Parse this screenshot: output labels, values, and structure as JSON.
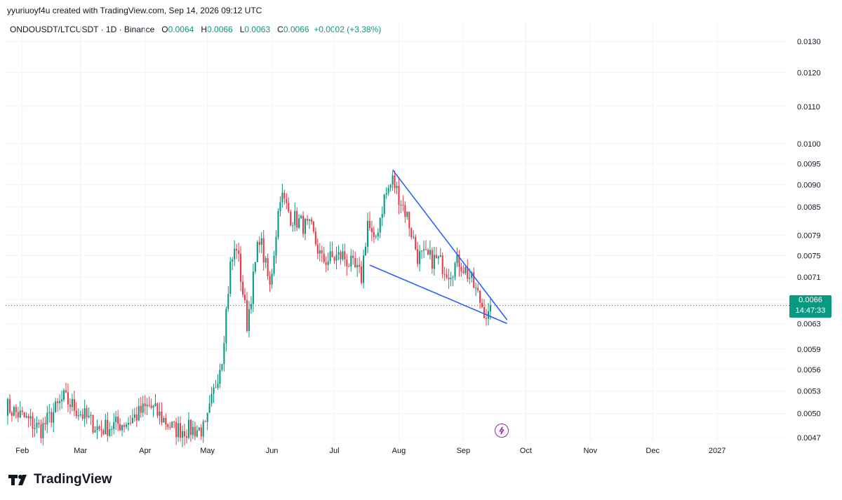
{
  "header": {
    "credit": "yyuriuoyf4u created with TradingView.com, Sep 14, 2026 09:12 UTC",
    "symbol": "ONDOUSDT/LTCUSDT · 1D · Binance",
    "o_label": "O",
    "o_value": "0.0064",
    "h_label": "H",
    "h_value": "0.0066",
    "l_label": "L",
    "l_value": "0.0063",
    "c_label": "C",
    "c_value": "0.0066",
    "change": "+0.0002 (+3.38%)"
  },
  "price_tag": {
    "price": "0.0066",
    "countdown": "14:47:33"
  },
  "brand": {
    "name": "TradingView"
  },
  "colors": {
    "up": "#089981",
    "down": "#f23645",
    "trendline": "#2962ff",
    "last_price_line": "#089981"
  },
  "chart_data": {
    "type": "candlestick",
    "scale": "log",
    "y_ticks": [
      0.013,
      0.012,
      0.011,
      0.01,
      0.0095,
      0.009,
      0.0085,
      0.0079,
      0.0075,
      0.0071,
      0.0067,
      0.0063,
      0.0059,
      0.0056,
      0.0053,
      0.005,
      0.0047
    ],
    "y_tick_labels": [
      "0.0130",
      "0.0120",
      "0.0110",
      "0.0100",
      "0.0095",
      "0.0090",
      "0.0085",
      "0.0079",
      "0.0075",
      "0.0071",
      "0.0067",
      "0.0063",
      "0.0059",
      "0.0056",
      "0.0053",
      "0.0050",
      "0.0047"
    ],
    "ylim": [
      0.00465,
      0.0137
    ],
    "x_ticks": [
      {
        "label": "Feb",
        "date": "2026-02-01"
      },
      {
        "label": "Mar",
        "date": "2026-03-01"
      },
      {
        "label": "Apr",
        "date": "2026-04-01"
      },
      {
        "label": "May",
        "date": "2026-05-01"
      },
      {
        "label": "Jun",
        "date": "2026-06-01"
      },
      {
        "label": "Jul",
        "date": "2026-07-01"
      },
      {
        "label": "Aug",
        "date": "2026-08-01"
      },
      {
        "label": "Sep",
        "date": "2026-09-01"
      },
      {
        "label": "Oct",
        "date": "2026-10-01"
      },
      {
        "label": "Nov",
        "date": "2026-11-01"
      },
      {
        "label": "Dec",
        "date": "2026-12-01"
      },
      {
        "label": "2027",
        "date": "2027-01-01"
      }
    ],
    "xlim": [
      "2026-01-24",
      "2027-02-03"
    ],
    "last_price": 0.0066,
    "trendlines": [
      {
        "name": "upper",
        "start": {
          "date": "2026-07-29",
          "price": 0.00935
        },
        "end": {
          "date": "2026-09-22",
          "price": 0.00636
        }
      },
      {
        "name": "lower",
        "start": {
          "date": "2026-07-18",
          "price": 0.00732
        },
        "end": {
          "date": "2026-09-22",
          "price": 0.0063
        }
      }
    ],
    "key_points": [
      {
        "date": "2026-01-24",
        "price": 0.0051
      },
      {
        "date": "2026-02-10",
        "price": 0.0048
      },
      {
        "date": "2026-02-21",
        "price": 0.0052
      },
      {
        "date": "2026-03-10",
        "price": 0.0048
      },
      {
        "date": "2026-03-24",
        "price": 0.0049
      },
      {
        "date": "2026-04-03",
        "price": 0.0051
      },
      {
        "date": "2026-04-15",
        "price": 0.0048
      },
      {
        "date": "2026-04-30",
        "price": 0.0048
      },
      {
        "date": "2026-05-08",
        "price": 0.0058
      },
      {
        "date": "2026-05-12",
        "price": 0.0073
      },
      {
        "date": "2026-05-15",
        "price": 0.0077
      },
      {
        "date": "2026-05-20",
        "price": 0.0063
      },
      {
        "date": "2026-05-26",
        "price": 0.0079
      },
      {
        "date": "2026-05-31",
        "price": 0.0069
      },
      {
        "date": "2026-06-05",
        "price": 0.0088
      },
      {
        "date": "2026-06-10",
        "price": 0.0083
      },
      {
        "date": "2026-06-20",
        "price": 0.008
      },
      {
        "date": "2026-06-25",
        "price": 0.0074
      },
      {
        "date": "2026-07-05",
        "price": 0.0075
      },
      {
        "date": "2026-07-14",
        "price": 0.0071
      },
      {
        "date": "2026-07-17",
        "price": 0.0082
      },
      {
        "date": "2026-07-20",
        "price": 0.0077
      },
      {
        "date": "2026-07-25",
        "price": 0.0087
      },
      {
        "date": "2026-07-29",
        "price": 0.0091
      },
      {
        "date": "2026-08-05",
        "price": 0.0083
      },
      {
        "date": "2026-08-10",
        "price": 0.0075
      },
      {
        "date": "2026-08-20",
        "price": 0.0074
      },
      {
        "date": "2026-08-25",
        "price": 0.0072
      },
      {
        "date": "2026-08-30",
        "price": 0.0074
      },
      {
        "date": "2026-09-04",
        "price": 0.0071
      },
      {
        "date": "2026-09-10",
        "price": 0.0066
      },
      {
        "date": "2026-09-13",
        "price": 0.0064
      },
      {
        "date": "2026-09-14",
        "price": 0.0066
      }
    ]
  }
}
